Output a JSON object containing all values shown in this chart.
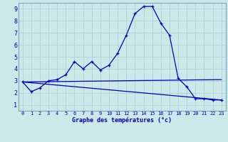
{
  "xlabel": "Graphe des températures (°c)",
  "bg_color": "#cce8e8",
  "grid_color": "#aacece",
  "line_color": "#0000bb",
  "x_ticks": [
    0,
    1,
    2,
    3,
    4,
    5,
    6,
    7,
    8,
    9,
    10,
    11,
    12,
    13,
    14,
    15,
    16,
    17,
    18,
    19,
    20,
    21,
    22,
    23
  ],
  "y_ticks": [
    1,
    2,
    3,
    4,
    5,
    6,
    7,
    8,
    9
  ],
  "xlim": [
    -0.5,
    23.5
  ],
  "ylim": [
    0.5,
    9.5
  ],
  "series1_x": [
    0,
    1,
    2,
    3,
    4,
    5,
    6,
    7,
    8,
    9,
    10,
    11,
    12,
    13,
    14,
    15,
    16,
    17,
    18,
    19,
    20,
    21,
    22,
    23
  ],
  "series1_y": [
    2.9,
    2.1,
    2.4,
    3.0,
    3.1,
    3.5,
    4.6,
    4.0,
    4.6,
    3.9,
    4.3,
    5.3,
    6.8,
    8.6,
    9.2,
    9.2,
    7.8,
    6.8,
    3.2,
    2.5,
    1.5,
    1.5,
    1.4,
    1.4
  ],
  "series2_x": [
    0,
    23
  ],
  "series2_y": [
    2.9,
    3.1
  ],
  "series3_x": [
    0,
    23
  ],
  "series3_y": [
    2.9,
    1.4
  ]
}
